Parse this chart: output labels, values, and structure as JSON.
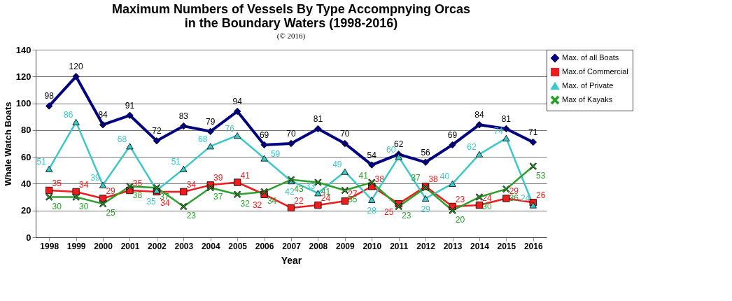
{
  "chart_data": {
    "type": "line",
    "title": [
      "Maximum Numbers of Vessels By Type Accompnying Orcas",
      "in the Boundary Waters (1998-2016)"
    ],
    "subtitle": "(© 2016)",
    "xlabel": "Year",
    "ylabel": "Whale Watch Boats",
    "categories": [
      "1998",
      "1999",
      "2000",
      "2001",
      "2002",
      "2003",
      "2004",
      "2005",
      "2006",
      "2007",
      "2008",
      "2009",
      "2010",
      "2011",
      "2012",
      "2013",
      "2014",
      "2015",
      "2016"
    ],
    "series": [
      {
        "name": "Max. of all Boats",
        "color": "#000080",
        "marker": "diamond",
        "values": [
          98,
          120,
          84,
          91,
          72,
          83,
          79,
          94,
          69,
          70,
          81,
          70,
          54,
          62,
          56,
          69,
          84,
          81,
          71
        ]
      },
      {
        "name": "Max.of Commercial",
        "color": "#ee1c1c",
        "marker": "square",
        "values": [
          35,
          34,
          29,
          35,
          34,
          34,
          39,
          41,
          32,
          22,
          24,
          27,
          38,
          25,
          38,
          23,
          24,
          29,
          26
        ]
      },
      {
        "name": "Max. of Private",
        "color": "#3cc8c8",
        "marker": "triangle",
        "values": [
          51,
          86,
          39,
          68,
          35,
          51,
          68,
          76,
          59,
          42,
          33,
          49,
          28,
          60,
          29,
          40,
          62,
          74,
          24
        ]
      },
      {
        "name": "Max of Kayaks",
        "color": "#2ca02c",
        "marker": "cross",
        "values": [
          30,
          30,
          25,
          38,
          37,
          23,
          37,
          32,
          34,
          43,
          41,
          35,
          41,
          23,
          37,
          20,
          30,
          36,
          53
        ]
      }
    ],
    "ylim": [
      0,
      140
    ],
    "yticks": [
      0,
      20,
      40,
      60,
      80,
      100,
      120,
      140
    ],
    "grid": "y",
    "legend": "top right",
    "data_labels": true,
    "line_style": "solid"
  }
}
